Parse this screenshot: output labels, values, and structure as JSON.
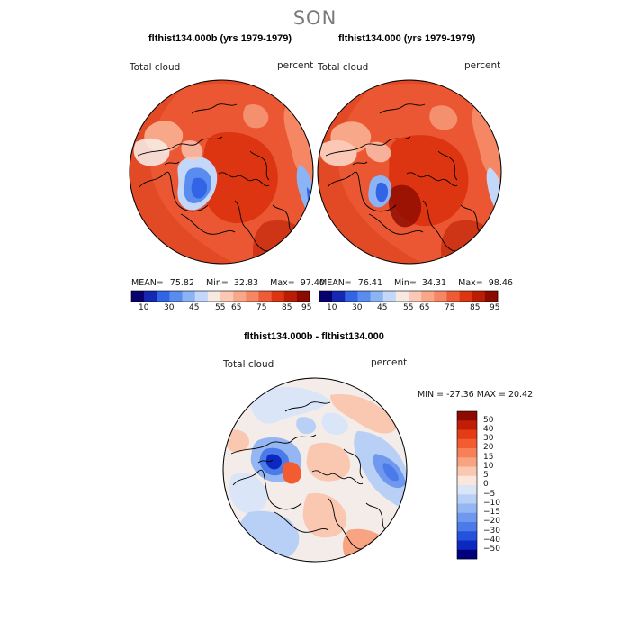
{
  "season": "SON",
  "panels": [
    {
      "title": "flthist134.000b (yrs 1979-1979)",
      "variable": "Total cloud",
      "units": "percent",
      "mean_label": "MEAN=",
      "mean": "75.82",
      "min_label": "Min=",
      "min": "32.83",
      "max_label": "Max=",
      "max": "97.40"
    },
    {
      "title": "flthist134.000 (yrs 1979-1979)",
      "variable": "Total cloud",
      "units": "percent",
      "mean_label": "MEAN=",
      "mean": "76.41",
      "min_label": "Min=",
      "min": "34.31",
      "max_label": "Max=",
      "max": "98.46"
    }
  ],
  "colorbar_top": {
    "labels": [
      "10",
      "30",
      "45",
      "55",
      "65",
      "75",
      "85",
      "95"
    ],
    "colors": [
      "#08006e",
      "#1428b4",
      "#3264e6",
      "#5a8cf0",
      "#8cb4f5",
      "#c3d7fa",
      "#f7e9e2",
      "#fac8b4",
      "#f8a888",
      "#f58764",
      "#ee5c37",
      "#dd3512",
      "#bb1c04",
      "#8c0a00"
    ]
  },
  "difference": {
    "title": "flthist134.000b - flthist134.000",
    "variable": "Total cloud",
    "units": "percent",
    "min_max_text": "MIN = -27.36 MAX =  20.42",
    "legend_labels": [
      "50",
      "40",
      "30",
      "20",
      "15",
      "10",
      "5",
      "0",
      "−5",
      "−10",
      "−15",
      "−20",
      "−30",
      "−40",
      "−50"
    ],
    "legend_colors": [
      "#8c0a00",
      "#c01e05",
      "#e43d16",
      "#f25c30",
      "#f68058",
      "#f8a382",
      "#fac7b1",
      "#fbe6dc",
      "#dae6f8",
      "#b9d0f6",
      "#94b6f3",
      "#6f98ee",
      "#4a7be8",
      "#2452dd",
      "#0b29c0",
      "#00007d"
    ]
  },
  "colors": {
    "land_outline": "#000000",
    "map_edge": "#000000"
  }
}
